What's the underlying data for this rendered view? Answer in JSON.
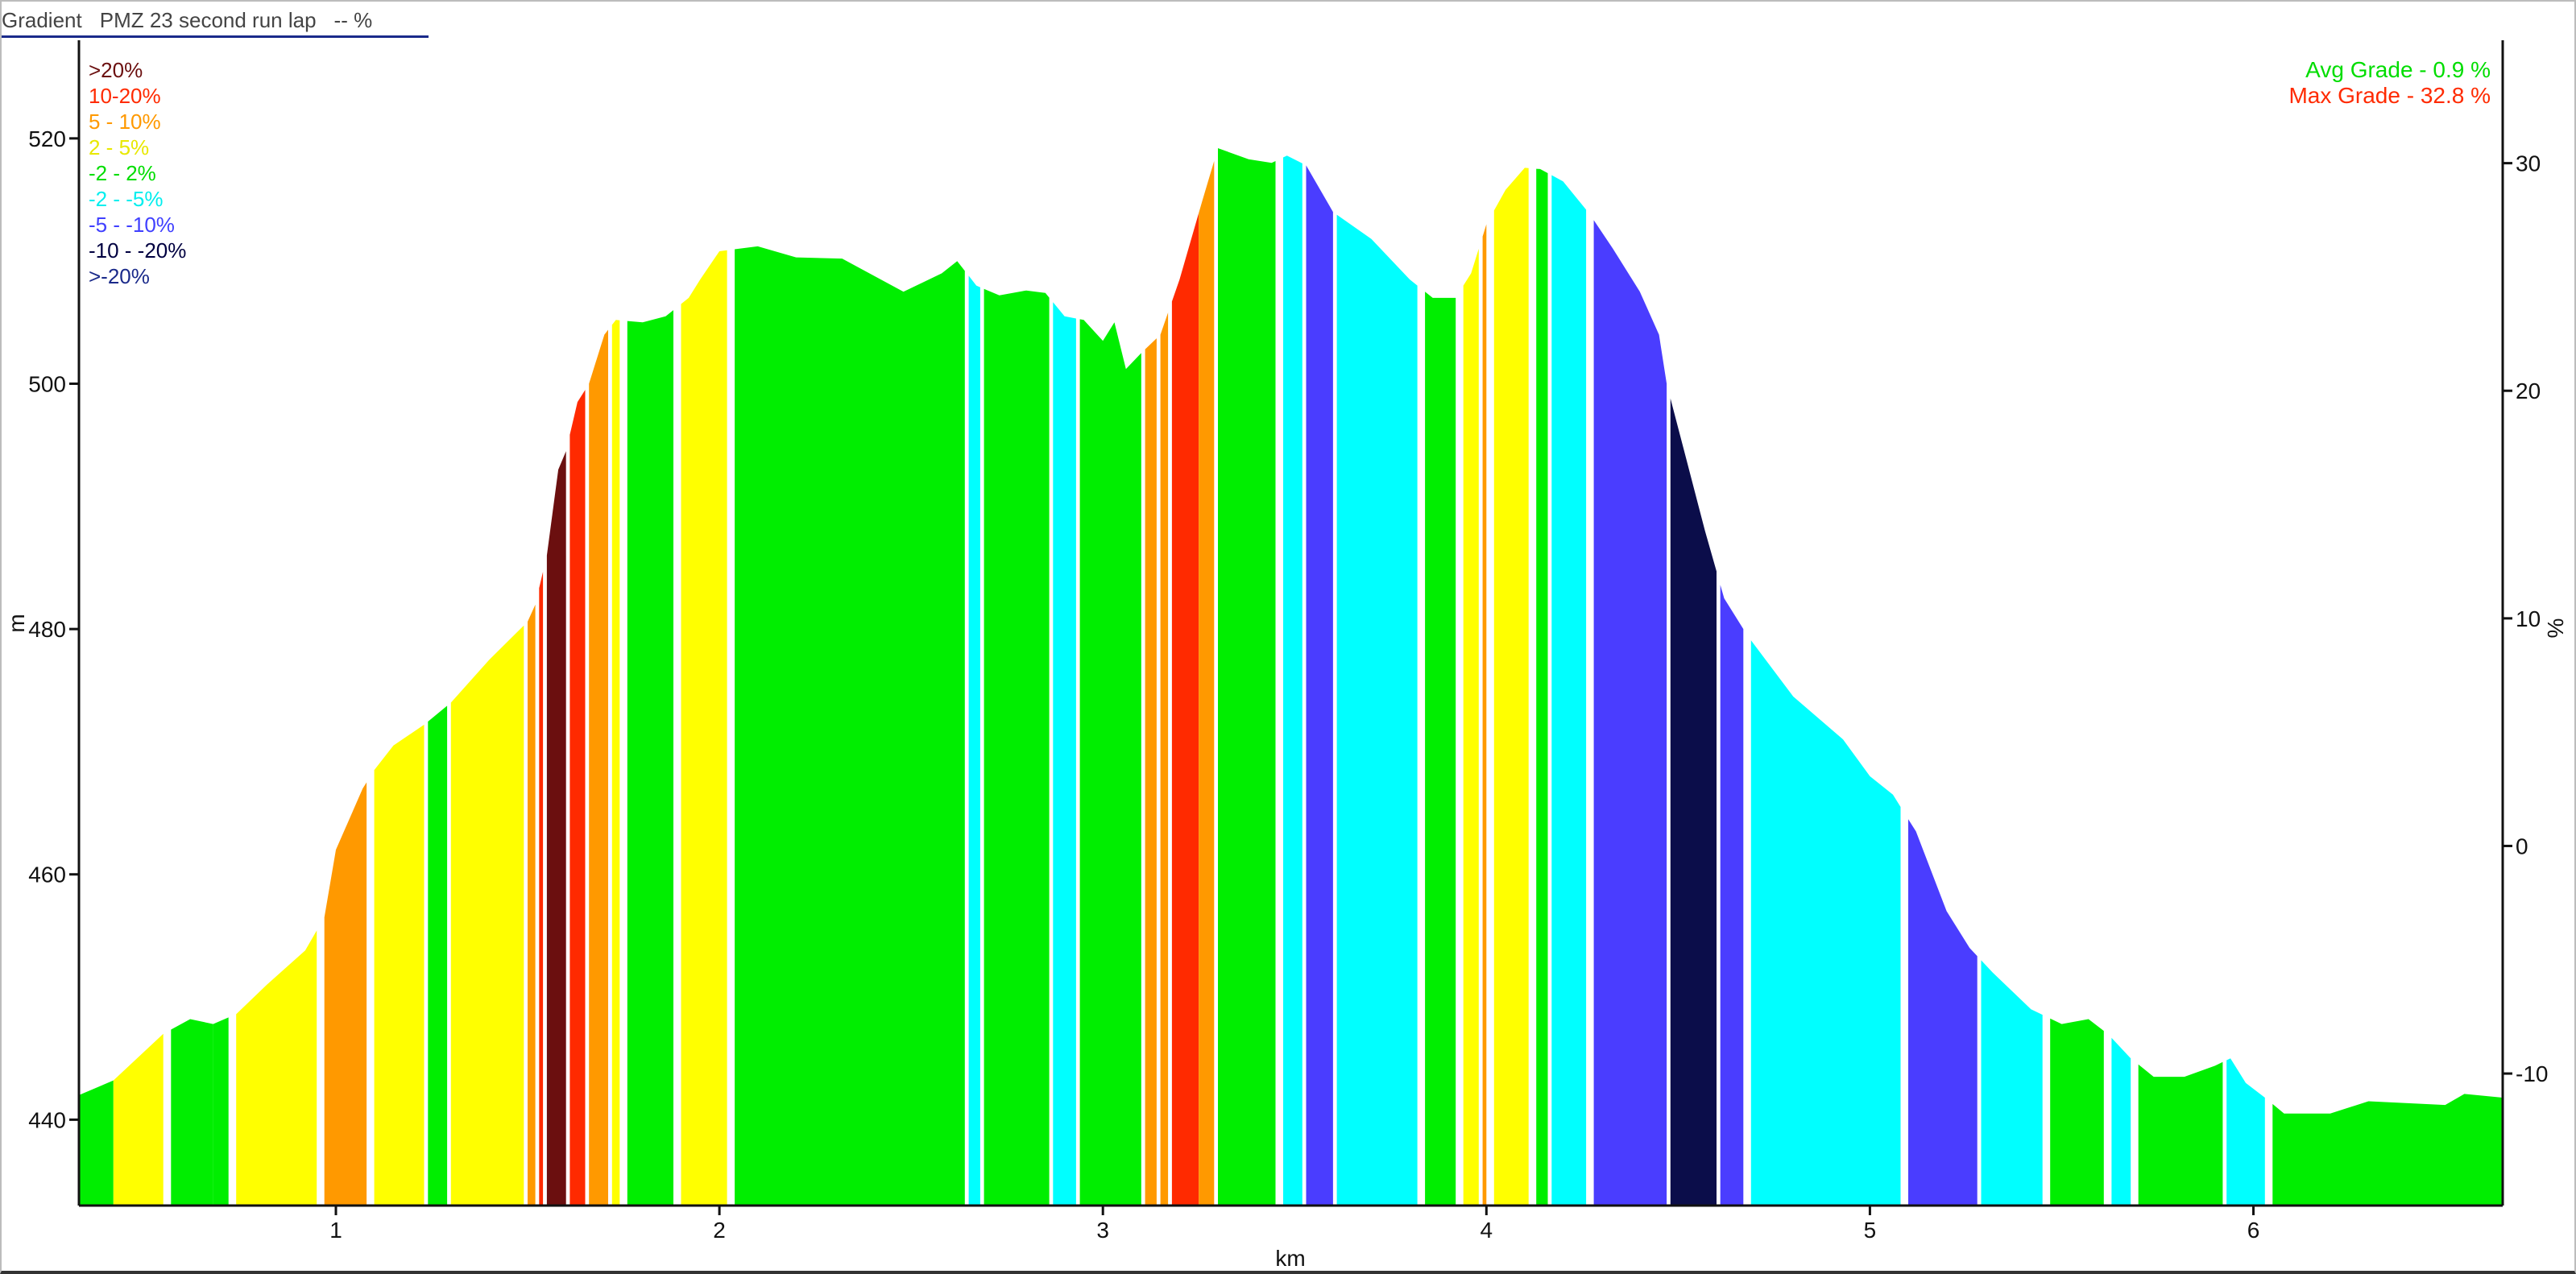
{
  "title": {
    "metric": "Gradient",
    "lap": "PMZ 23 second run lap",
    "value": "-- %"
  },
  "chart_data": {
    "type": "area",
    "xlabel": "km",
    "ylabel": "m",
    "y2label": "%",
    "xlim": [
      0.33,
      6.65
    ],
    "ylim": [
      433,
      528
    ],
    "y2lim": [
      -15.8,
      35.4
    ],
    "xticks": [
      1,
      2,
      3,
      4,
      5,
      6
    ],
    "yticks": [
      440,
      460,
      480,
      500,
      520
    ],
    "y2ticks": [
      -10,
      0,
      10,
      20,
      30
    ],
    "legend": {
      "position": "top-left",
      "items": [
        {
          "label": ">20%",
          "color": "#6b0f0f"
        },
        {
          "label": "10-20%",
          "color": "#ff2a00"
        },
        {
          "label": "5 - 10%",
          "color": "#ff9900"
        },
        {
          "label": "2 - 5%",
          "color": "#e8e800"
        },
        {
          "label": "-2 - 2%",
          "color": "#00dd00"
        },
        {
          "label": "-2 - -5%",
          "color": "#00eeee"
        },
        {
          "label": "-5 - -10%",
          "color": "#4040ff"
        },
        {
          "label": "-10 - -20%",
          "color": "#000040"
        },
        {
          "label": ">-20%",
          "color": "#1a2a8a"
        }
      ]
    },
    "stats": [
      {
        "label": "Avg Grade - 0.9 %",
        "color": "#00dd00"
      },
      {
        "label": "Max Grade - 32.8 %",
        "color": "#ff2a00"
      }
    ],
    "colors": {
      "gt20": "#6b0f0f",
      "p10": "#ff2a00",
      "p5": "#ff9900",
      "p2": "#ffff00",
      "flat": "#00ee00",
      "n2": "#00ffff",
      "n5": "#4a3dff",
      "n10": "#0b0d4a"
    },
    "profile": [
      [
        0.33,
        442
      ],
      [
        0.42,
        443.2
      ],
      [
        0.55,
        447
      ],
      [
        0.62,
        448.2
      ],
      [
        0.68,
        447.8
      ],
      [
        0.74,
        448.6
      ],
      [
        0.82,
        451
      ],
      [
        0.92,
        453.8
      ],
      [
        0.97,
        456.5
      ],
      [
        1.0,
        462
      ],
      [
        1.07,
        467
      ],
      [
        1.1,
        468.5
      ],
      [
        1.15,
        470.5
      ],
      [
        1.23,
        472.2
      ],
      [
        1.3,
        474
      ],
      [
        1.4,
        477.5
      ],
      [
        1.5,
        480.6
      ],
      [
        1.52,
        482
      ],
      [
        1.55,
        486
      ],
      [
        1.58,
        493
      ],
      [
        1.6,
        494.5
      ],
      [
        1.63,
        498.5
      ],
      [
        1.66,
        500
      ],
      [
        1.7,
        504
      ],
      [
        1.73,
        505.2
      ],
      [
        1.8,
        505
      ],
      [
        1.86,
        505.5
      ],
      [
        1.92,
        507
      ],
      [
        1.95,
        508.5
      ],
      [
        2.0,
        510.8
      ],
      [
        2.1,
        511.2
      ],
      [
        2.2,
        510.3
      ],
      [
        2.32,
        510.2
      ],
      [
        2.48,
        507.5
      ],
      [
        2.58,
        509
      ],
      [
        2.62,
        510
      ],
      [
        2.67,
        508
      ],
      [
        2.73,
        507.2
      ],
      [
        2.8,
        507.6
      ],
      [
        2.85,
        507.4
      ],
      [
        2.9,
        505.5
      ],
      [
        2.95,
        505.2
      ],
      [
        3.0,
        503.5
      ],
      [
        3.03,
        505
      ],
      [
        3.06,
        501.2
      ],
      [
        3.1,
        502.5
      ],
      [
        3.15,
        504
      ],
      [
        3.2,
        508.5
      ],
      [
        3.26,
        515
      ],
      [
        3.3,
        519.2
      ],
      [
        3.38,
        518.3
      ],
      [
        3.44,
        518
      ],
      [
        3.48,
        518.6
      ],
      [
        3.53,
        517.8
      ],
      [
        3.6,
        514
      ],
      [
        3.7,
        511.8
      ],
      [
        3.8,
        508.5
      ],
      [
        3.86,
        507
      ],
      [
        3.92,
        507
      ],
      [
        3.96,
        509
      ],
      [
        4.0,
        513
      ],
      [
        4.05,
        515.8
      ],
      [
        4.1,
        517.6
      ],
      [
        4.14,
        517.5
      ],
      [
        4.2,
        516.5
      ],
      [
        4.27,
        513.8
      ],
      [
        4.33,
        511
      ],
      [
        4.4,
        507.5
      ],
      [
        4.45,
        504
      ],
      [
        4.47,
        500
      ],
      [
        4.52,
        494
      ],
      [
        4.57,
        488
      ],
      [
        4.62,
        482.5
      ],
      [
        4.68,
        479.5
      ],
      [
        4.8,
        474.5
      ],
      [
        4.93,
        471
      ],
      [
        5.0,
        468
      ],
      [
        5.06,
        466.5
      ],
      [
        5.12,
        463.5
      ],
      [
        5.2,
        457
      ],
      [
        5.26,
        454
      ],
      [
        5.32,
        452
      ],
      [
        5.42,
        449
      ],
      [
        5.5,
        447.8
      ],
      [
        5.57,
        448.2
      ],
      [
        5.62,
        447
      ],
      [
        5.68,
        445
      ],
      [
        5.74,
        443.5
      ],
      [
        5.82,
        443.5
      ],
      [
        5.9,
        444.4
      ],
      [
        5.94,
        445
      ],
      [
        5.98,
        443
      ],
      [
        6.03,
        441.8
      ],
      [
        6.08,
        440.5
      ],
      [
        6.2,
        440.5
      ],
      [
        6.3,
        441.5
      ],
      [
        6.5,
        441.2
      ],
      [
        6.55,
        442.1
      ],
      [
        6.65,
        441.8
      ]
    ],
    "segments": [
      {
        "x0": 0.33,
        "x1": 0.42,
        "grade": "flat"
      },
      {
        "x0": 0.42,
        "x1": 0.55,
        "grade": "p2"
      },
      {
        "x0": 0.57,
        "x1": 0.68,
        "grade": "flat"
      },
      {
        "x0": 0.68,
        "x1": 0.72,
        "grade": "flat"
      },
      {
        "x0": 0.74,
        "x1": 0.95,
        "grade": "p2"
      },
      {
        "x0": 0.97,
        "x1": 1.08,
        "grade": "p5"
      },
      {
        "x0": 1.1,
        "x1": 1.23,
        "grade": "p2"
      },
      {
        "x0": 1.24,
        "x1": 1.29,
        "grade": "flat"
      },
      {
        "x0": 1.3,
        "x1": 1.49,
        "grade": "p2"
      },
      {
        "x0": 1.5,
        "x1": 1.52,
        "grade": "p5"
      },
      {
        "x0": 1.53,
        "x1": 1.54,
        "grade": "p10"
      },
      {
        "x0": 1.55,
        "x1": 1.6,
        "grade": "gt20"
      },
      {
        "x0": 1.61,
        "x1": 1.65,
        "grade": "p10"
      },
      {
        "x0": 1.66,
        "x1": 1.71,
        "grade": "p5"
      },
      {
        "x0": 1.72,
        "x1": 1.74,
        "grade": "p2"
      },
      {
        "x0": 1.76,
        "x1": 1.88,
        "grade": "flat"
      },
      {
        "x0": 1.9,
        "x1": 2.02,
        "grade": "p2"
      },
      {
        "x0": 2.04,
        "x1": 2.64,
        "grade": "flat"
      },
      {
        "x0": 2.65,
        "x1": 2.68,
        "grade": "n2"
      },
      {
        "x0": 2.69,
        "x1": 2.86,
        "grade": "flat"
      },
      {
        "x0": 2.87,
        "x1": 2.93,
        "grade": "n2"
      },
      {
        "x0": 2.94,
        "x1": 3.1,
        "grade": "flat"
      },
      {
        "x0": 3.11,
        "x1": 3.14,
        "grade": "p5"
      },
      {
        "x0": 3.15,
        "x1": 3.17,
        "grade": "p5"
      },
      {
        "x0": 3.18,
        "x1": 3.25,
        "grade": "p10"
      },
      {
        "x0": 3.25,
        "x1": 3.29,
        "grade": "p5"
      },
      {
        "x0": 3.3,
        "x1": 3.45,
        "grade": "flat"
      },
      {
        "x0": 3.47,
        "x1": 3.52,
        "grade": "n2"
      },
      {
        "x0": 3.53,
        "x1": 3.6,
        "grade": "n5"
      },
      {
        "x0": 3.61,
        "x1": 3.82,
        "grade": "n2"
      },
      {
        "x0": 3.84,
        "x1": 3.92,
        "grade": "flat"
      },
      {
        "x0": 3.94,
        "x1": 3.98,
        "grade": "p2"
      },
      {
        "x0": 3.99,
        "x1": 4.0,
        "grade": "p5"
      },
      {
        "x0": 4.02,
        "x1": 4.11,
        "grade": "p2"
      },
      {
        "x0": 4.13,
        "x1": 4.16,
        "grade": "flat"
      },
      {
        "x0": 4.17,
        "x1": 4.26,
        "grade": "n2"
      },
      {
        "x0": 4.28,
        "x1": 4.47,
        "grade": "n5"
      },
      {
        "x0": 4.48,
        "x1": 4.6,
        "grade": "n10"
      },
      {
        "x0": 4.61,
        "x1": 4.67,
        "grade": "n5"
      },
      {
        "x0": 4.69,
        "x1": 5.08,
        "grade": "n2"
      },
      {
        "x0": 5.1,
        "x1": 5.28,
        "grade": "n5"
      },
      {
        "x0": 5.29,
        "x1": 5.45,
        "grade": "n2"
      },
      {
        "x0": 5.47,
        "x1": 5.61,
        "grade": "flat"
      },
      {
        "x0": 5.63,
        "x1": 5.68,
        "grade": "n2"
      },
      {
        "x0": 5.7,
        "x1": 5.92,
        "grade": "flat"
      },
      {
        "x0": 5.93,
        "x1": 6.03,
        "grade": "n2"
      },
      {
        "x0": 6.05,
        "x1": 6.65,
        "grade": "flat"
      }
    ]
  }
}
